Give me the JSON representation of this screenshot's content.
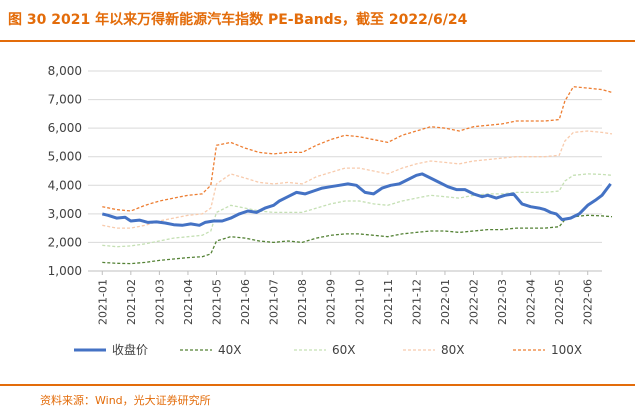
{
  "header": {
    "title": "图 30 2021 年以来万得新能源汽车指数 PE-Bands，截至 2022/6/24"
  },
  "footer": {
    "source": "资料来源：Wind，光大证券研究所"
  },
  "colors": {
    "accent": "#E36C0A",
    "close": "#4472C4",
    "pe40": "#548235",
    "pe60": "#C5E0B4",
    "pe80": "#F8CBAD",
    "pe100": "#ED7D31"
  },
  "chart_data": {
    "type": "line",
    "title": "图 30 2021 年以来万得新能源汽车指数 PE-Bands，截至 2022/6/24",
    "xlabel": "",
    "ylabel": "",
    "ylim": [
      1000,
      8000
    ],
    "yticks": [
      "1,000",
      "2,000",
      "3,000",
      "4,000",
      "5,000",
      "6,000",
      "7,000",
      "8,000"
    ],
    "yticks_values": [
      1000,
      2000,
      3000,
      4000,
      5000,
      6000,
      7000,
      8000
    ],
    "categories": [
      "2021-01",
      "2021-02",
      "2021-03",
      "2021-04",
      "2021-05",
      "2021-06",
      "2021-07",
      "2021-08",
      "2021-09",
      "2021-10",
      "2021-11",
      "2021-12",
      "2022-01",
      "2022-02",
      "2022-03",
      "2022-04",
      "2022-05",
      "2022-06"
    ],
    "legend_position": "bottom",
    "series": [
      {
        "name": "收盘价",
        "style": "solid",
        "x": [
          0,
          0.2,
          0.5,
          0.8,
          1.0,
          1.3,
          1.6,
          1.9,
          2.2,
          2.5,
          2.8,
          3.1,
          3.4,
          3.6,
          3.9,
          4.2,
          4.5,
          4.8,
          5.1,
          5.4,
          5.7,
          6.0,
          6.2,
          6.5,
          6.8,
          7.1,
          7.4,
          7.7,
          8.0,
          8.3,
          8.6,
          8.9,
          9.2,
          9.5,
          9.8,
          10.1,
          10.4,
          10.7,
          11.0,
          11.2,
          11.5,
          11.8,
          12.1,
          12.4,
          12.7,
          13.0,
          13.3,
          13.5,
          13.8,
          14.1,
          14.4,
          14.7,
          15.0,
          15.3,
          15.5,
          15.7,
          15.9,
          16.1,
          16.4,
          16.7,
          17.0,
          17.3,
          17.5,
          17.8
        ],
        "values": [
          3000,
          2950,
          2850,
          2880,
          2750,
          2780,
          2700,
          2720,
          2680,
          2620,
          2600,
          2650,
          2600,
          2700,
          2750,
          2750,
          2850,
          3000,
          3100,
          3050,
          3200,
          3300,
          3450,
          3600,
          3750,
          3700,
          3800,
          3900,
          3950,
          4000,
          4050,
          4000,
          3750,
          3700,
          3900,
          4000,
          4050,
          4200,
          4350,
          4400,
          4250,
          4100,
          3950,
          3850,
          3850,
          3700,
          3600,
          3650,
          3550,
          3650,
          3700,
          3350,
          3250,
          3200,
          3150,
          3050,
          3000,
          2800,
          2850,
          3000,
          3300,
          3500,
          3650,
          4050
        ]
      },
      {
        "name": "40X",
        "style": "dashed",
        "x": [
          0,
          0.5,
          1.0,
          1.5,
          2.0,
          2.5,
          3.0,
          3.5,
          3.8,
          4.0,
          4.5,
          5.0,
          5.5,
          6.0,
          6.5,
          7.0,
          7.5,
          8.0,
          8.5,
          9.0,
          9.5,
          10.0,
          10.5,
          11.0,
          11.5,
          12.0,
          12.5,
          13.0,
          13.5,
          14.0,
          14.5,
          15.0,
          15.5,
          16.0,
          16.2,
          16.5,
          17.0,
          17.5,
          17.85
        ],
        "values": [
          1300,
          1270,
          1260,
          1300,
          1370,
          1420,
          1470,
          1500,
          1600,
          2050,
          2200,
          2150,
          2050,
          2000,
          2050,
          2000,
          2150,
          2250,
          2300,
          2300,
          2250,
          2200,
          2300,
          2350,
          2400,
          2400,
          2350,
          2400,
          2450,
          2450,
          2500,
          2500,
          2500,
          2550,
          2800,
          2900,
          2950,
          2930,
          2900
        ]
      },
      {
        "name": "60X",
        "style": "dashed",
        "x": [
          0,
          0.5,
          1.0,
          1.5,
          2.0,
          2.5,
          3.0,
          3.5,
          3.8,
          4.0,
          4.5,
          5.0,
          5.5,
          6.0,
          6.5,
          7.0,
          7.5,
          8.0,
          8.5,
          9.0,
          9.5,
          10.0,
          10.5,
          11.0,
          11.5,
          12.0,
          12.5,
          13.0,
          13.5,
          14.0,
          14.5,
          15.0,
          15.5,
          16.0,
          16.2,
          16.5,
          17.0,
          17.5,
          17.85
        ],
        "values": [
          1900,
          1850,
          1880,
          1950,
          2050,
          2150,
          2200,
          2250,
          2400,
          3050,
          3300,
          3200,
          3100,
          3050,
          3050,
          3050,
          3200,
          3350,
          3450,
          3450,
          3350,
          3300,
          3450,
          3550,
          3650,
          3600,
          3550,
          3650,
          3700,
          3700,
          3750,
          3750,
          3750,
          3800,
          4150,
          4350,
          4400,
          4380,
          4350
        ]
      },
      {
        "name": "80X",
        "style": "dashed",
        "x": [
          0,
          0.5,
          1.0,
          1.5,
          2.0,
          2.5,
          3.0,
          3.5,
          3.8,
          4.0,
          4.5,
          5.0,
          5.5,
          6.0,
          6.5,
          7.0,
          7.5,
          8.0,
          8.5,
          9.0,
          9.5,
          10.0,
          10.5,
          11.0,
          11.5,
          12.0,
          12.5,
          13.0,
          13.5,
          14.0,
          14.5,
          15.0,
          15.5,
          16.0,
          16.2,
          16.5,
          17.0,
          17.5,
          17.85
        ],
        "values": [
          2600,
          2500,
          2500,
          2600,
          2750,
          2850,
          2950,
          3000,
          3200,
          4050,
          4400,
          4250,
          4100,
          4050,
          4100,
          4050,
          4300,
          4450,
          4600,
          4600,
          4500,
          4400,
          4600,
          4750,
          4850,
          4800,
          4750,
          4850,
          4900,
          4950,
          5000,
          5000,
          5000,
          5050,
          5550,
          5850,
          5900,
          5850,
          5800
        ]
      },
      {
        "name": "100X",
        "style": "dashed",
        "x": [
          0,
          0.5,
          1.0,
          1.5,
          2.0,
          2.5,
          3.0,
          3.5,
          3.8,
          4.0,
          4.5,
          5.0,
          5.5,
          6.0,
          6.5,
          7.0,
          7.5,
          8.0,
          8.5,
          9.0,
          9.5,
          10.0,
          10.5,
          11.0,
          11.5,
          12.0,
          12.5,
          13.0,
          13.5,
          14.0,
          14.5,
          15.0,
          15.5,
          16.0,
          16.2,
          16.5,
          17.0,
          17.5,
          17.85
        ],
        "values": [
          3250,
          3150,
          3100,
          3300,
          3450,
          3550,
          3650,
          3700,
          4000,
          5400,
          5500,
          5300,
          5150,
          5100,
          5150,
          5150,
          5400,
          5600,
          5750,
          5700,
          5600,
          5500,
          5750,
          5900,
          6050,
          6000,
          5900,
          6050,
          6100,
          6150,
          6250,
          6250,
          6250,
          6300,
          6950,
          7450,
          7400,
          7350,
          7250
        ]
      }
    ]
  }
}
